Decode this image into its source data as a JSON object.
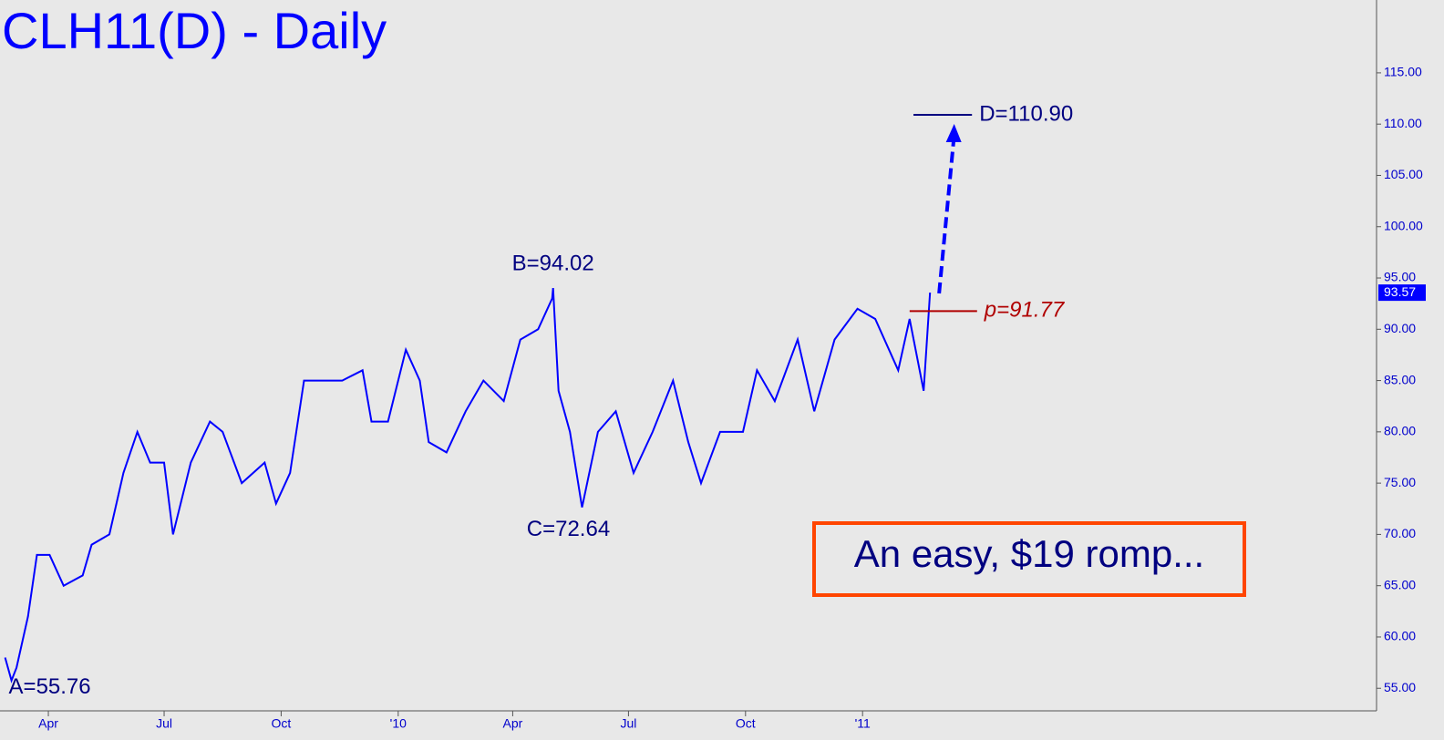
{
  "chart_data": {
    "type": "line",
    "title": "CLH11(D) - Daily",
    "x": [
      -34,
      -29,
      -25,
      -16,
      -9,
      1,
      12,
      27,
      34,
      48,
      59,
      70,
      80,
      91,
      98,
      112,
      127,
      137,
      152,
      170,
      179,
      190,
      201,
      213,
      231,
      247,
      254,
      267,
      281,
      292,
      299,
      313,
      328,
      342,
      358,
      371,
      385,
      396,
      396.7,
      401,
      410,
      419,
      419.5,
      432,
      446,
      460,
      475,
      491,
      503,
      513,
      528,
      546,
      557,
      571,
      589,
      602,
      618,
      636,
      650,
      668,
      677,
      688,
      693
    ],
    "series": [
      {
        "name": "CLH11",
        "color": "#0000ff",
        "values": [
          58,
          55.76,
          57,
          62,
          68,
          68,
          65,
          66,
          69,
          70,
          76,
          80,
          77,
          77,
          70,
          77,
          81,
          80,
          75,
          77,
          73,
          76,
          85,
          85,
          85,
          86,
          81,
          81,
          88,
          85,
          79,
          78,
          82,
          85,
          83,
          89,
          90,
          93,
          94.02,
          84,
          80,
          73,
          72.64,
          80,
          82,
          76,
          80,
          85,
          79,
          75,
          80,
          80,
          86,
          83,
          89,
          82,
          89,
          92,
          91,
          86,
          91,
          84,
          93.57
        ]
      }
    ],
    "xlim": [
      -38,
      1044
    ],
    "xticks": [
      {
        "value": 0,
        "label": "Apr"
      },
      {
        "value": 91,
        "label": "Jul"
      },
      {
        "value": 183,
        "label": "Oct"
      },
      {
        "value": 275,
        "label": "'10"
      },
      {
        "value": 365,
        "label": "Apr"
      },
      {
        "value": 456,
        "label": "Jul"
      },
      {
        "value": 548,
        "label": "Oct"
      },
      {
        "value": 640,
        "label": "'11"
      }
    ],
    "ylim": [
      52.8,
      122.1
    ],
    "yticks": [
      {
        "value": 55,
        "label": "55.00"
      },
      {
        "value": 60,
        "label": "60.00"
      },
      {
        "value": 65,
        "label": "65.00"
      },
      {
        "value": 70,
        "label": "70.00"
      },
      {
        "value": 75,
        "label": "75.00"
      },
      {
        "value": 80,
        "label": "80.00"
      },
      {
        "value": 85,
        "label": "85.00"
      },
      {
        "value": 90,
        "label": "90.00"
      },
      {
        "value": 95,
        "label": "95.00"
      },
      {
        "value": 100,
        "label": "100.00"
      },
      {
        "value": 105,
        "label": "105.00"
      },
      {
        "value": 110,
        "label": "110.00"
      },
      {
        "value": 115,
        "label": "115.00"
      }
    ],
    "last_value": 93.57,
    "annotations": [
      {
        "label": "A=55.76",
        "x": -29,
        "value": 55.76
      },
      {
        "label": "B=94.02",
        "x": 396.7,
        "value": 94.02
      },
      {
        "label": "C=72.64",
        "x": 419.5,
        "value": 72.64
      }
    ],
    "levels": [
      {
        "label": "D=110.90",
        "value": 110.9,
        "color": "#000080",
        "x": [
          680,
          726
        ]
      },
      {
        "label": "p=91.77",
        "value": 91.77,
        "color": "#b00000",
        "x": [
          677,
          730
        ]
      }
    ],
    "callout": "An easy, $19 romp..."
  }
}
